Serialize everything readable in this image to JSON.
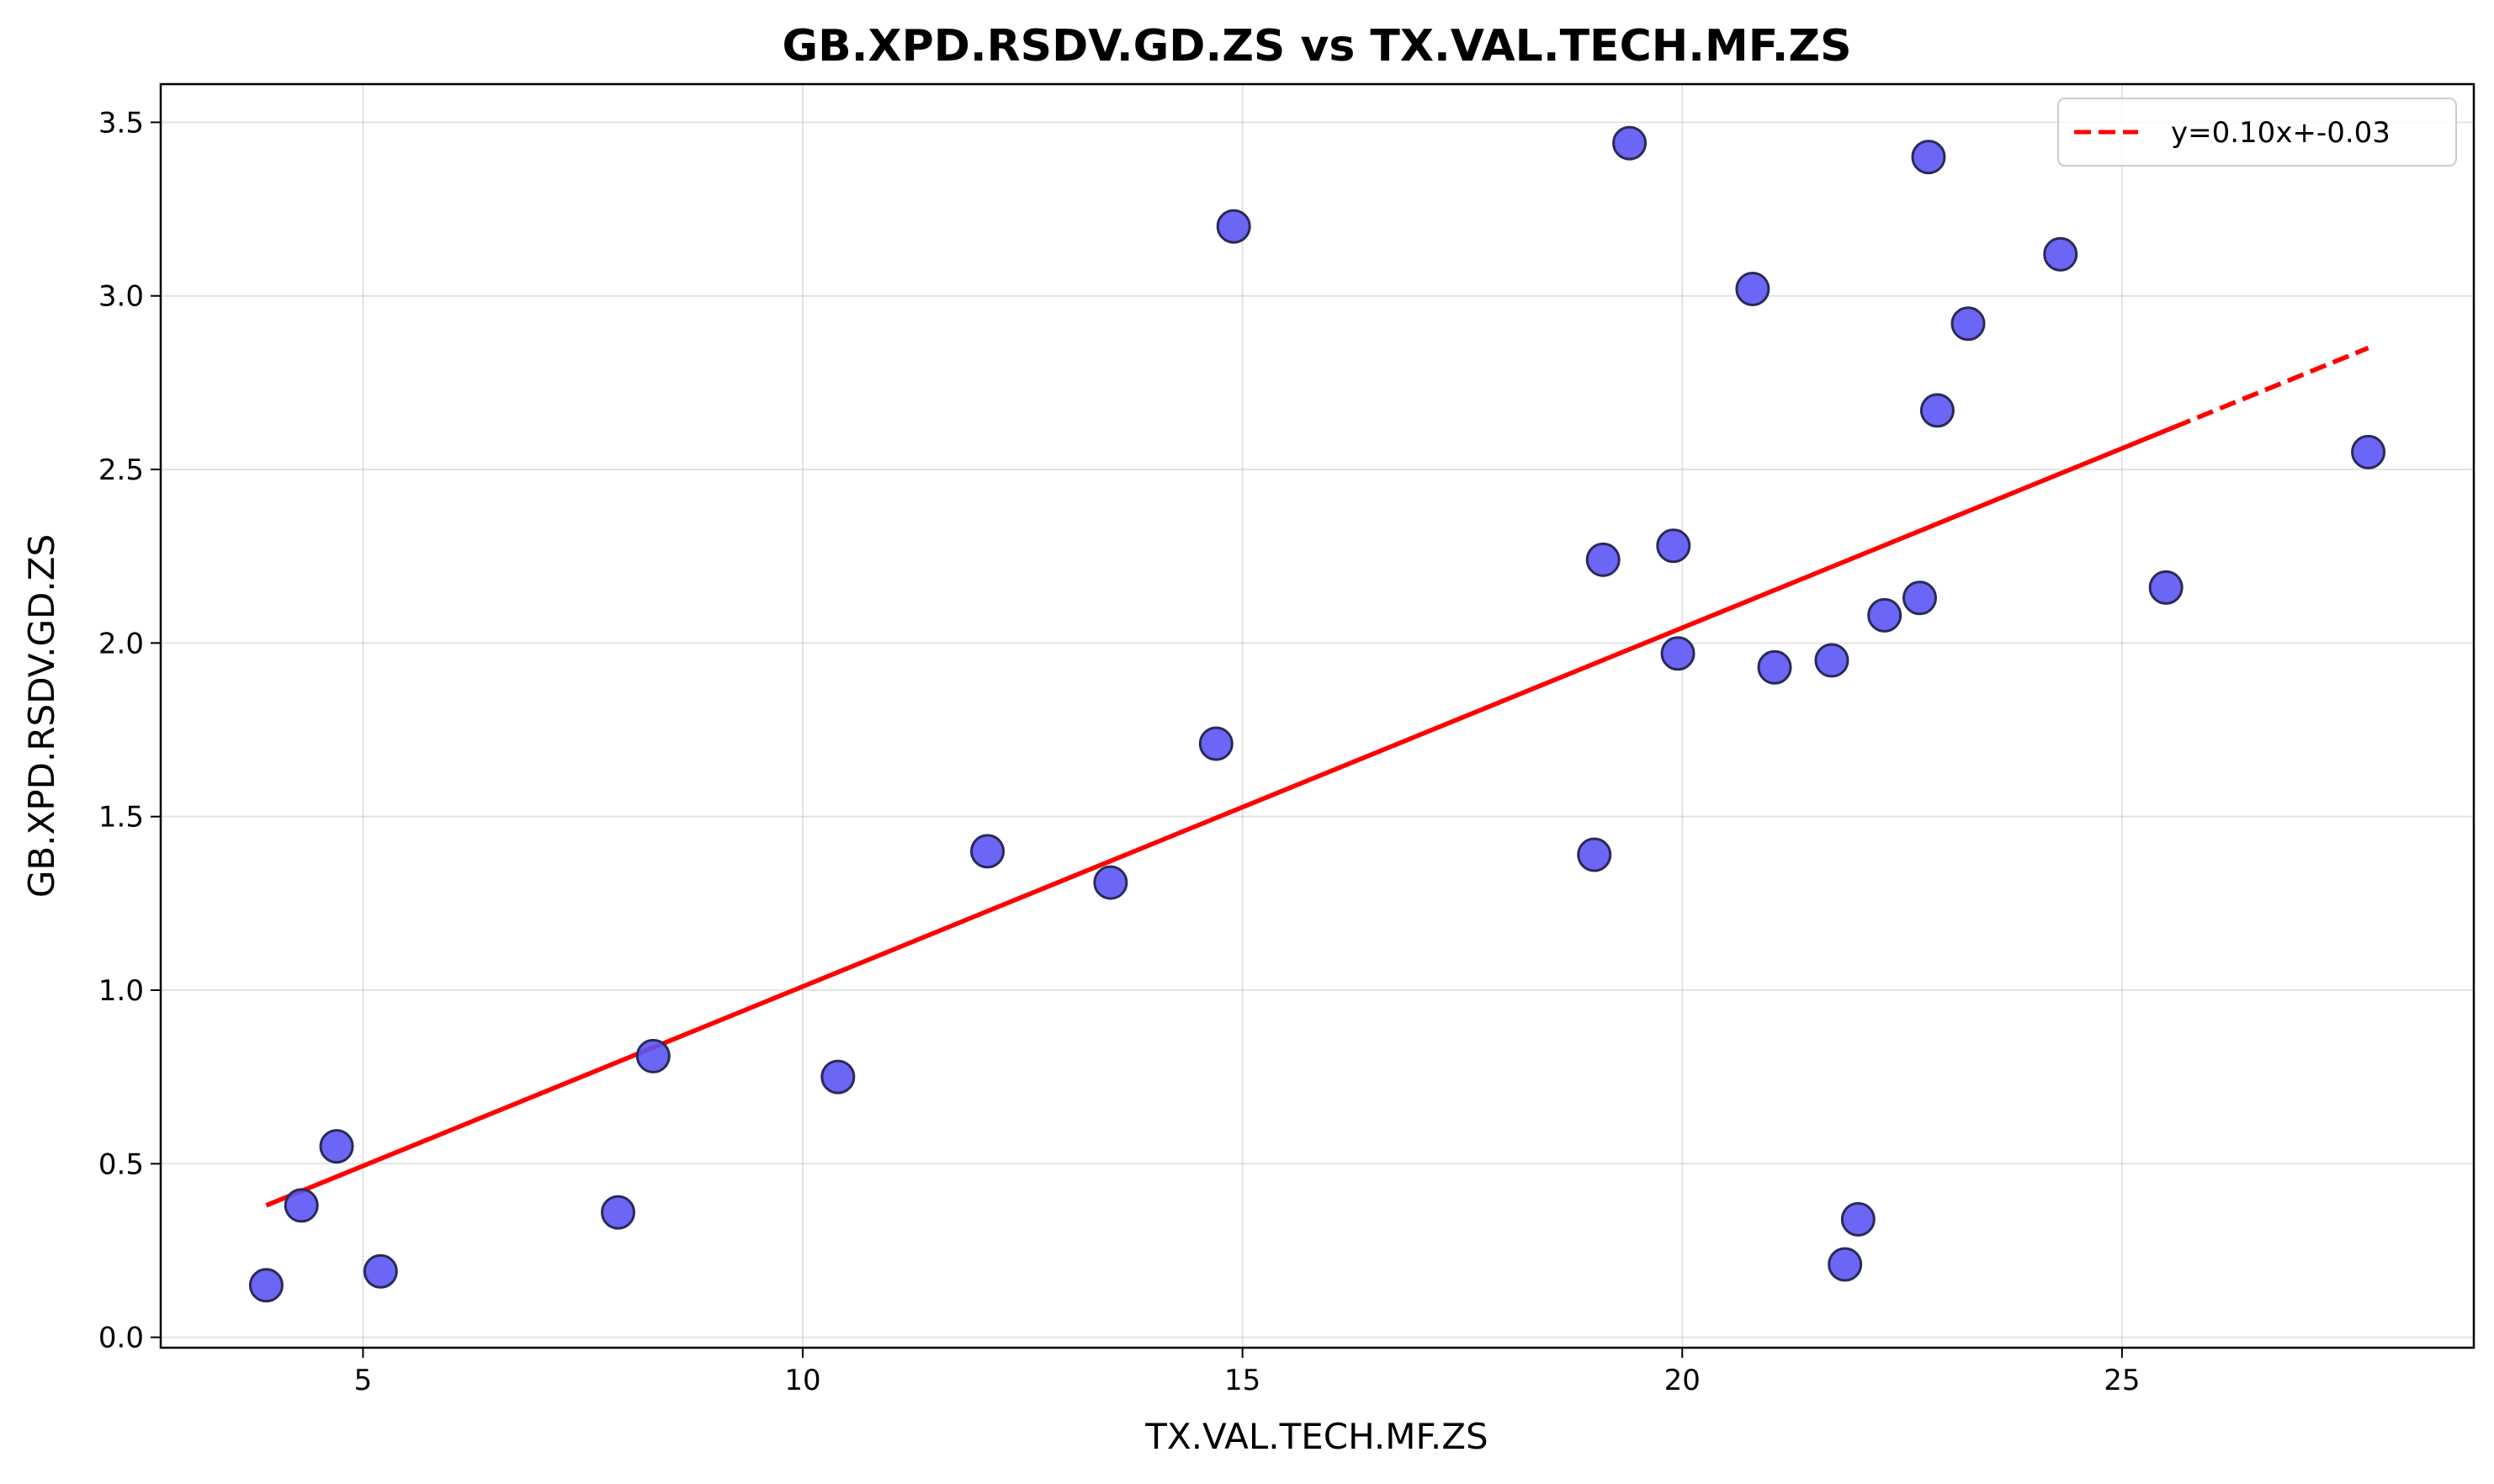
{
  "chart_data": {
    "type": "scatter",
    "title": "GB.XPD.RSDV.GD.ZS vs TX.VAL.TECH.MF.ZS",
    "xlabel": "TX.VAL.TECH.MF.ZS",
    "ylabel": "GB.XPD.RSDV.GD.ZS",
    "xlim": [
      2.7,
      29.0
    ],
    "ylim": [
      -0.03,
      3.61
    ],
    "xticks": [
      5,
      10,
      15,
      20,
      25
    ],
    "yticks": [
      0.0,
      0.5,
      1.0,
      1.5,
      2.0,
      2.5,
      3.0,
      3.5
    ],
    "xtick_labels": [
      "5",
      "10",
      "15",
      "20",
      "25"
    ],
    "ytick_labels": [
      "0.0",
      "0.5",
      "1.0",
      "1.5",
      "2.0",
      "2.5",
      "3.0",
      "3.5"
    ],
    "grid": true,
    "legend_position": "top-right",
    "point_color": "#5b55f5",
    "line_color": "#ff0000",
    "points": [
      {
        "x": 3.9,
        "y": 0.15
      },
      {
        "x": 4.3,
        "y": 0.38
      },
      {
        "x": 4.7,
        "y": 0.55
      },
      {
        "x": 5.2,
        "y": 0.19
      },
      {
        "x": 7.9,
        "y": 0.36
      },
      {
        "x": 8.3,
        "y": 0.81
      },
      {
        "x": 10.4,
        "y": 0.75
      },
      {
        "x": 12.1,
        "y": 1.4
      },
      {
        "x": 13.5,
        "y": 1.31
      },
      {
        "x": 14.7,
        "y": 1.71
      },
      {
        "x": 14.9,
        "y": 3.2
      },
      {
        "x": 19.0,
        "y": 1.39
      },
      {
        "x": 19.1,
        "y": 2.24
      },
      {
        "x": 19.4,
        "y": 3.44
      },
      {
        "x": 19.9,
        "y": 2.28
      },
      {
        "x": 19.95,
        "y": 1.97
      },
      {
        "x": 20.8,
        "y": 3.02
      },
      {
        "x": 21.05,
        "y": 1.93
      },
      {
        "x": 21.7,
        "y": 1.95
      },
      {
        "x": 21.85,
        "y": 0.21
      },
      {
        "x": 22.0,
        "y": 0.34
      },
      {
        "x": 22.3,
        "y": 2.08
      },
      {
        "x": 22.7,
        "y": 2.13
      },
      {
        "x": 22.8,
        "y": 3.4
      },
      {
        "x": 22.9,
        "y": 2.67
      },
      {
        "x": 23.25,
        "y": 2.92
      },
      {
        "x": 24.3,
        "y": 3.12
      },
      {
        "x": 25.5,
        "y": 2.16
      },
      {
        "x": 27.8,
        "y": 2.55
      }
    ],
    "fit_line": {
      "label": "y=0.10x+-0.03",
      "x_start": 3.9,
      "x_end": 27.8,
      "y_start": 0.38,
      "y_end": 2.85,
      "solid_until_x": 25.6
    }
  }
}
